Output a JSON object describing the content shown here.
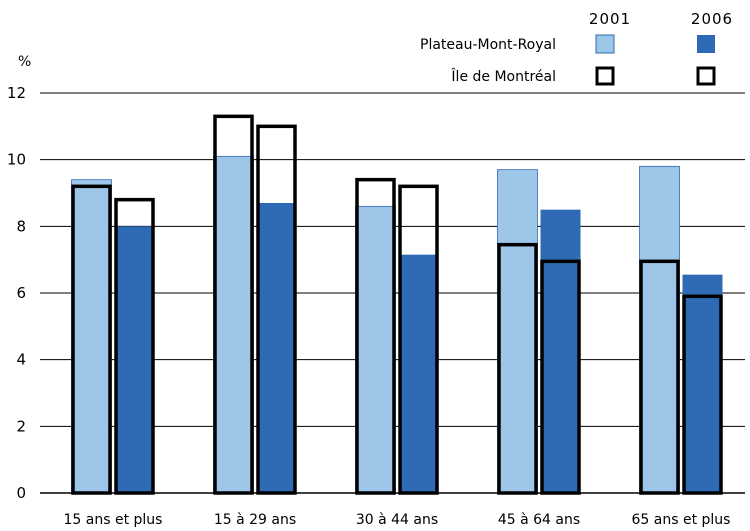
{
  "chart_data": {
    "type": "bar",
    "ylabel": "%",
    "ylim": [
      0,
      12
    ],
    "yticks": [
      0,
      2,
      4,
      6,
      8,
      10,
      12
    ],
    "grid": true,
    "categories": [
      "15 ans et plus",
      "15 à 29 ans",
      "30 à 44 ans",
      "45 à 64 ans",
      "65 ans et plus"
    ],
    "legend": {
      "years": [
        "2001",
        "2006"
      ],
      "rows": [
        "Plateau-Mont-Royal",
        "Île de Montréal"
      ]
    },
    "series": [
      {
        "name": "Plateau-Mont-Royal 2001",
        "color": "#9dc6e8",
        "style": "filled",
        "values": [
          9.4,
          10.1,
          8.6,
          9.7,
          9.8
        ]
      },
      {
        "name": "Plateau-Mont-Royal 2006",
        "color": "#2f6bb5",
        "style": "filled",
        "values": [
          8.0,
          8.7,
          7.15,
          8.5,
          6.55
        ]
      },
      {
        "name": "Île de Montréal 2001",
        "color": "#000000",
        "style": "outline",
        "values": [
          9.2,
          11.3,
          9.4,
          7.45,
          6.95
        ]
      },
      {
        "name": "Île de Montréal 2006",
        "color": "#000000",
        "style": "outline",
        "values": [
          8.8,
          11.0,
          9.2,
          6.95,
          5.9
        ]
      }
    ]
  }
}
